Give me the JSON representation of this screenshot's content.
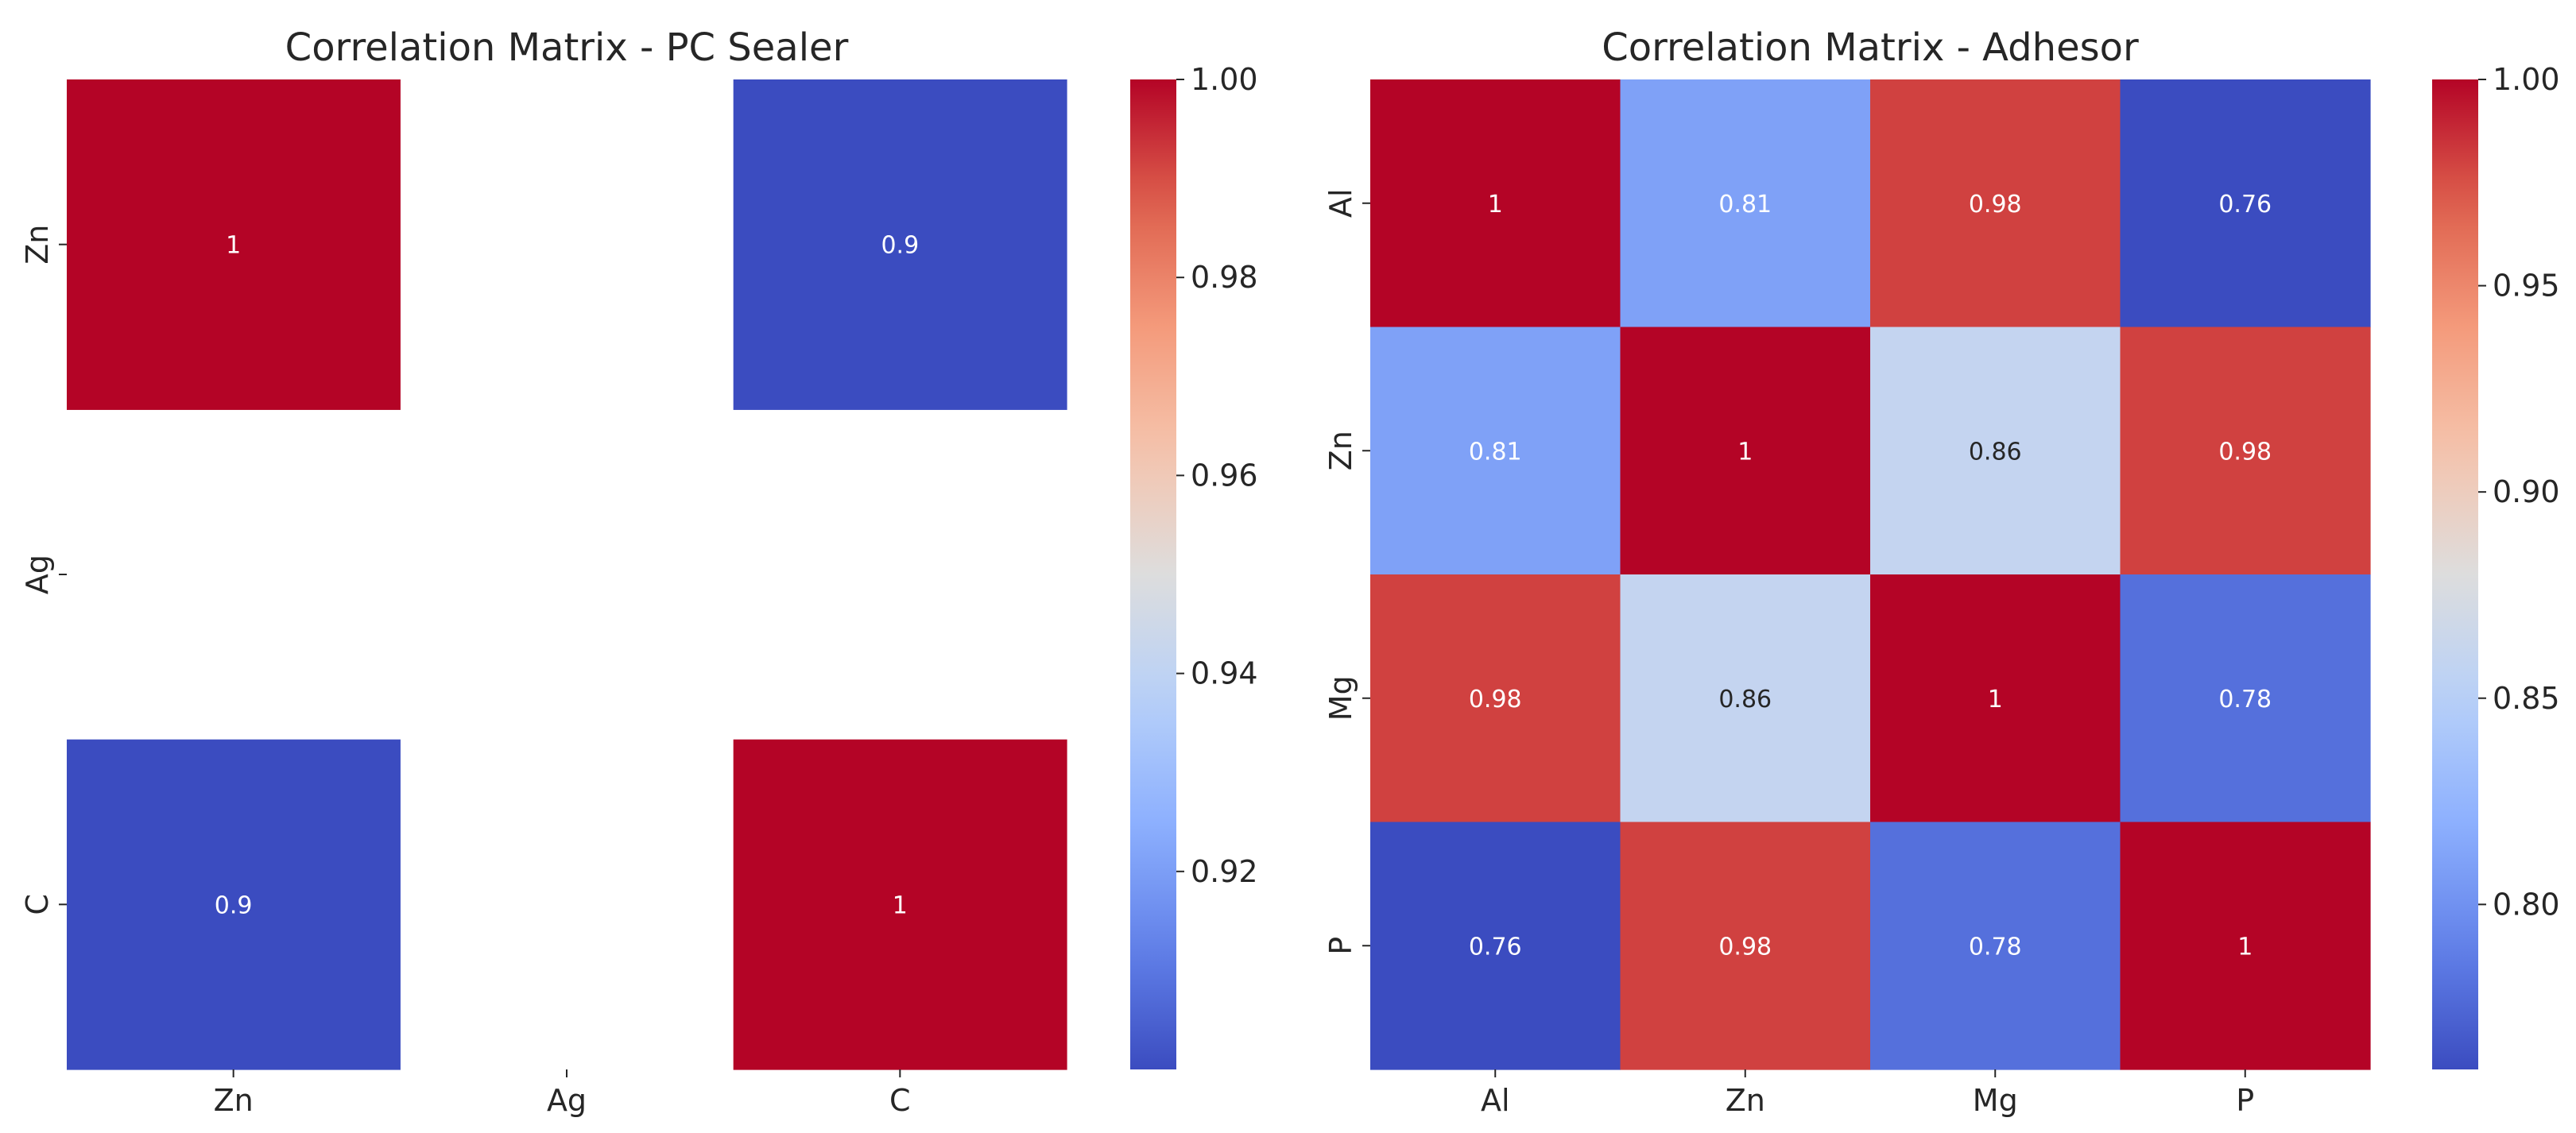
{
  "chart_data": [
    {
      "type": "heatmap",
      "title": "Correlation Matrix - PC Sealer",
      "x_labels": [
        "Zn",
        "Ag",
        "C"
      ],
      "y_labels": [
        "Zn",
        "Ag",
        "C"
      ],
      "values": [
        [
          1,
          null,
          0.9
        ],
        [
          null,
          null,
          null
        ],
        [
          0.9,
          null,
          1
        ]
      ],
      "cell_labels": [
        [
          "1",
          "",
          "0.9"
        ],
        [
          "",
          "",
          ""
        ],
        [
          "0.9",
          "",
          "1"
        ]
      ],
      "colormap": "coolwarm",
      "vmin": 0.9,
      "vmax": 1.0,
      "colorbar_ticks": [
        0.92,
        0.94,
        0.96,
        0.98,
        1.0
      ],
      "colorbar_tick_labels": [
        "0.92",
        "0.94",
        "0.96",
        "0.98",
        "1.00"
      ],
      "xlabel": "",
      "ylabel": ""
    },
    {
      "type": "heatmap",
      "title": "Correlation Matrix - Adhesor",
      "x_labels": [
        "Al",
        "Zn",
        "Mg",
        "P"
      ],
      "y_labels": [
        "Al",
        "Zn",
        "Mg",
        "P"
      ],
      "values": [
        [
          1,
          0.81,
          0.98,
          0.76
        ],
        [
          0.81,
          1,
          0.86,
          0.98
        ],
        [
          0.98,
          0.86,
          1,
          0.78
        ],
        [
          0.76,
          0.98,
          0.78,
          1
        ]
      ],
      "cell_labels": [
        [
          "1",
          "0.81",
          "0.98",
          "0.76"
        ],
        [
          "0.81",
          "1",
          "0.86",
          "0.98"
        ],
        [
          "0.98",
          "0.86",
          "1",
          "0.78"
        ],
        [
          "0.76",
          "0.98",
          "0.78",
          "1"
        ]
      ],
      "colormap": "coolwarm",
      "vmin": 0.76,
      "vmax": 1.0,
      "colorbar_ticks": [
        0.8,
        0.85,
        0.9,
        0.95,
        1.0
      ],
      "colorbar_tick_labels": [
        "0.80",
        "0.85",
        "0.90",
        "0.95",
        "1.00"
      ],
      "xlabel": "",
      "ylabel": ""
    }
  ]
}
